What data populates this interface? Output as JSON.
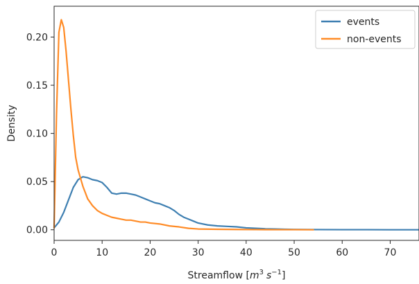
{
  "chart_data": {
    "type": "line",
    "title": "",
    "xlabel_prefix": "Streamflow [",
    "xlabel_unit_m": "m",
    "xlabel_unit_m_exp": "3",
    "xlabel_unit_s": "s",
    "xlabel_unit_s_exp": "−1",
    "xlabel_suffix": "]",
    "ylabel": "Density",
    "xlim": [
      0,
      76
    ],
    "ylim": [
      -0.011,
      0.232
    ],
    "xticks": [
      0,
      10,
      20,
      30,
      40,
      50,
      60,
      70
    ],
    "xtick_labels": [
      "0",
      "10",
      "20",
      "30",
      "40",
      "50",
      "60",
      "70"
    ],
    "yticks": [
      0.0,
      0.05,
      0.1,
      0.15,
      0.2
    ],
    "ytick_labels": [
      "0.00",
      "0.05",
      "0.10",
      "0.15",
      "0.20"
    ],
    "grid": false,
    "legend_position": "top-right",
    "series": [
      {
        "name": "events",
        "color": "#3e7fb1",
        "x": [
          0,
          1,
          2,
          3,
          4,
          5,
          6,
          7,
          8,
          9,
          10,
          11,
          12,
          13,
          14,
          15,
          16,
          17,
          18,
          19,
          20,
          21,
          22,
          23,
          24,
          25,
          26,
          27,
          28,
          29,
          30,
          32,
          34,
          36,
          38,
          40,
          42,
          44,
          46,
          48,
          50,
          55,
          60,
          65,
          70,
          76
        ],
        "y": [
          0.002,
          0.008,
          0.018,
          0.031,
          0.044,
          0.052,
          0.055,
          0.054,
          0.052,
          0.051,
          0.049,
          0.044,
          0.038,
          0.037,
          0.038,
          0.038,
          0.037,
          0.036,
          0.034,
          0.032,
          0.03,
          0.028,
          0.027,
          0.025,
          0.023,
          0.02,
          0.016,
          0.013,
          0.011,
          0.009,
          0.007,
          0.005,
          0.004,
          0.0035,
          0.003,
          0.002,
          0.0015,
          0.001,
          0.0008,
          0.0005,
          0.0003,
          0.0002,
          0.0001,
          0.0001,
          0.0,
          0.0
        ]
      },
      {
        "name": "non-events",
        "color": "#ff8b26",
        "x": [
          0,
          0.5,
          1,
          1.5,
          2,
          2.5,
          3,
          3.5,
          4,
          4.5,
          5,
          6,
          7,
          8,
          9,
          10,
          11,
          12,
          13,
          14,
          15,
          16,
          17,
          18,
          19,
          20,
          22,
          24,
          26,
          28,
          30,
          34,
          38,
          42,
          46,
          50,
          54
        ],
        "y": [
          0.002,
          0.12,
          0.205,
          0.218,
          0.21,
          0.185,
          0.155,
          0.125,
          0.098,
          0.075,
          0.062,
          0.045,
          0.032,
          0.025,
          0.02,
          0.017,
          0.015,
          0.013,
          0.012,
          0.011,
          0.01,
          0.01,
          0.009,
          0.008,
          0.008,
          0.007,
          0.006,
          0.004,
          0.003,
          0.0015,
          0.0008,
          0.0005,
          0.0003,
          0.0002,
          0.0001,
          0.0001,
          0.0
        ]
      }
    ]
  }
}
